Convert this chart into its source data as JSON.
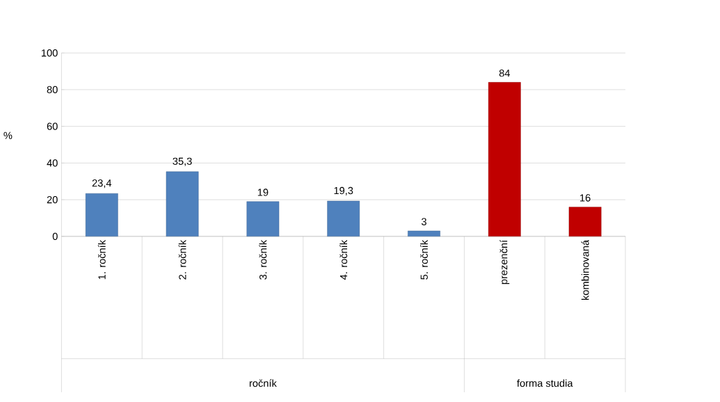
{
  "chart_data": {
    "type": "bar",
    "ylabel": "%",
    "categories": [
      "1. ročník",
      "2. ročník",
      "3. ročník",
      "4. ročník",
      "5. ročník",
      "prezenční",
      "kombinovaná"
    ],
    "values": [
      23.4,
      35.3,
      19,
      19.3,
      3,
      84,
      16
    ],
    "colors": [
      "#4f81bd",
      "#4f81bd",
      "#4f81bd",
      "#4f81bd",
      "#4f81bd",
      "#c00000",
      "#c00000"
    ],
    "value_labels": [
      "23,4",
      "35,3",
      "19",
      "19,3",
      "3",
      "84",
      "16"
    ],
    "ylim": [
      0,
      100
    ],
    "yticks": [
      0,
      20,
      40,
      60,
      80,
      100
    ],
    "grid": "y",
    "annotations": [
      "ročník",
      "forma studia"
    ]
  }
}
